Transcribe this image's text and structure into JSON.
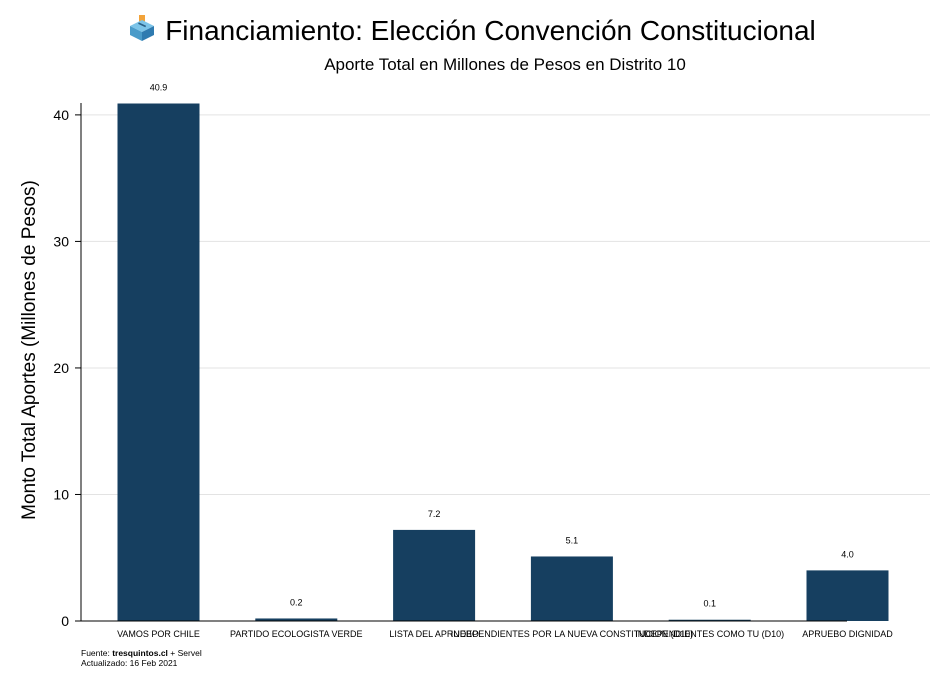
{
  "header": {
    "icon": "ballot-box-icon",
    "title": "Financiamiento: Elección Convención Constitucional",
    "subtitle": "Aporte Total en Millones de Pesos en Distrito 10"
  },
  "footer": {
    "source_prefix": "Fuente: ",
    "source_site": "tresquintos.cl",
    "source_suffix": " + Servel",
    "updated": "Actualizado: 16 Feb 2021"
  },
  "colors": {
    "bar": "#163f60",
    "grid": "#e3e3e3",
    "axis": "#000000"
  },
  "chart_data": {
    "type": "bar",
    "title": "Financiamiento: Elección Convención Constitucional",
    "subtitle": "Aporte Total en Millones de Pesos en Distrito 10",
    "xlabel": "",
    "ylabel": "Monto Total Aportes (Millones de Pesos)",
    "categories": [
      "VAMOS POR CHILE",
      "PARTIDO ECOLOGISTA VERDE",
      "LISTA DEL APRUEBO",
      "INDEPENDIENTES POR LA NUEVA CONSTITUCION (D10)",
      "INDEPENDIENTES COMO TU (D10)",
      "APRUEBO DIGNIDAD"
    ],
    "values": [
      40.9,
      0.2,
      7.2,
      5.1,
      0.1,
      4.0
    ],
    "value_labels": [
      "40.9",
      "0.2",
      "7.2",
      "5.1",
      "0.1",
      "4.0"
    ],
    "ylim": [
      0,
      40.9
    ],
    "yticks": [
      0,
      10,
      20,
      30,
      40
    ],
    "grid": true
  }
}
